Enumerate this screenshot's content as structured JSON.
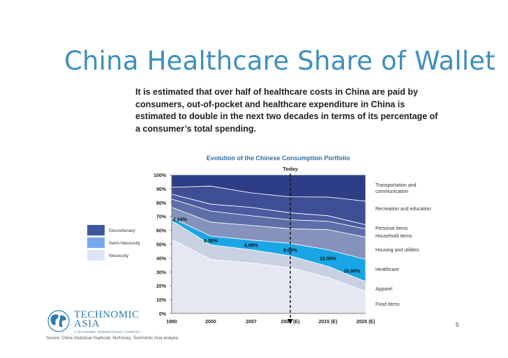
{
  "slide": {
    "title": "China Healthcare Share of Wallet",
    "intro": "It is estimated that over half of healthcare costs in China are paid by consumers, out-of-pocket and healthcare expenditure in China is estimated to double in the next two decades in terms of its percentage of a consumer’s total spending.",
    "page_number": "5",
    "source": "Source: China Statistical Yearbook; McKinsey; Technomic Asia analysis"
  },
  "logo": {
    "line1": "TECHNOMIC",
    "line2": "ASIA",
    "tagline": "A TECHNOMIC INTERNATIONAL COMPANY"
  },
  "legend": [
    {
      "label": "Discretionary",
      "color": "#3e57a0"
    },
    {
      "label": "Semi-Necessity",
      "color": "#7aa8ef"
    },
    {
      "label": "Necessity",
      "color": "#dde6f6"
    }
  ],
  "chart_data": {
    "type": "area",
    "stacked": true,
    "title": "Evolution of the Chinese Consumption Portfolio",
    "x": [
      "1990",
      "2000",
      "2007",
      "2009 (E)",
      "2015 (E)",
      "2025 (E)"
    ],
    "ylim": [
      0,
      100
    ],
    "y_ticks": [
      "0%",
      "10%",
      "20%",
      "30%",
      "40%",
      "50%",
      "60%",
      "70%",
      "80%",
      "90%",
      "100%"
    ],
    "today_marker": {
      "label": "Today",
      "x": "2009 (E)"
    },
    "series": [
      {
        "name": "Food items",
        "color": "#e4e8f2",
        "values": [
          53.5,
          39,
          36.5,
          33,
          26,
          16
        ]
      },
      {
        "name": "Apparel",
        "color": "#c9d0e2",
        "values": [
          13.5,
          10.5,
          9.5,
          8.5,
          8,
          7
        ]
      },
      {
        "name": "Healthcare",
        "color": "#1aa6e6",
        "values": [
          2.04,
          6.36,
          6.99,
          9.09,
          12.0,
          16.0
        ]
      },
      {
        "name": "Housing and utilities",
        "color": "#8592bc",
        "values": [
          7.5,
          10,
          10.5,
          10.5,
          14.5,
          16
        ]
      },
      {
        "name": "Household Items",
        "color": "#5e6ea8",
        "values": [
          6,
          8,
          7,
          6.5,
          6,
          6
        ]
      },
      {
        "name": "Personal items",
        "color": "#4a5ba0",
        "values": [
          3.5,
          5,
          6,
          5,
          4,
          3
        ]
      },
      {
        "name": "Recreation and education",
        "color": "#3e4f96",
        "values": [
          5,
          13,
          10.5,
          11.5,
          13.5,
          17
        ]
      },
      {
        "name": "Transportation and communication",
        "color": "#2d3d86",
        "values": [
          8.96,
          8.14,
          13.01,
          15.91,
          16,
          19
        ]
      }
    ],
    "healthcare_labels": [
      "2.04%",
      "6.36%",
      "6.99%",
      "9.09%",
      "12.00%",
      "16.00%"
    ]
  }
}
